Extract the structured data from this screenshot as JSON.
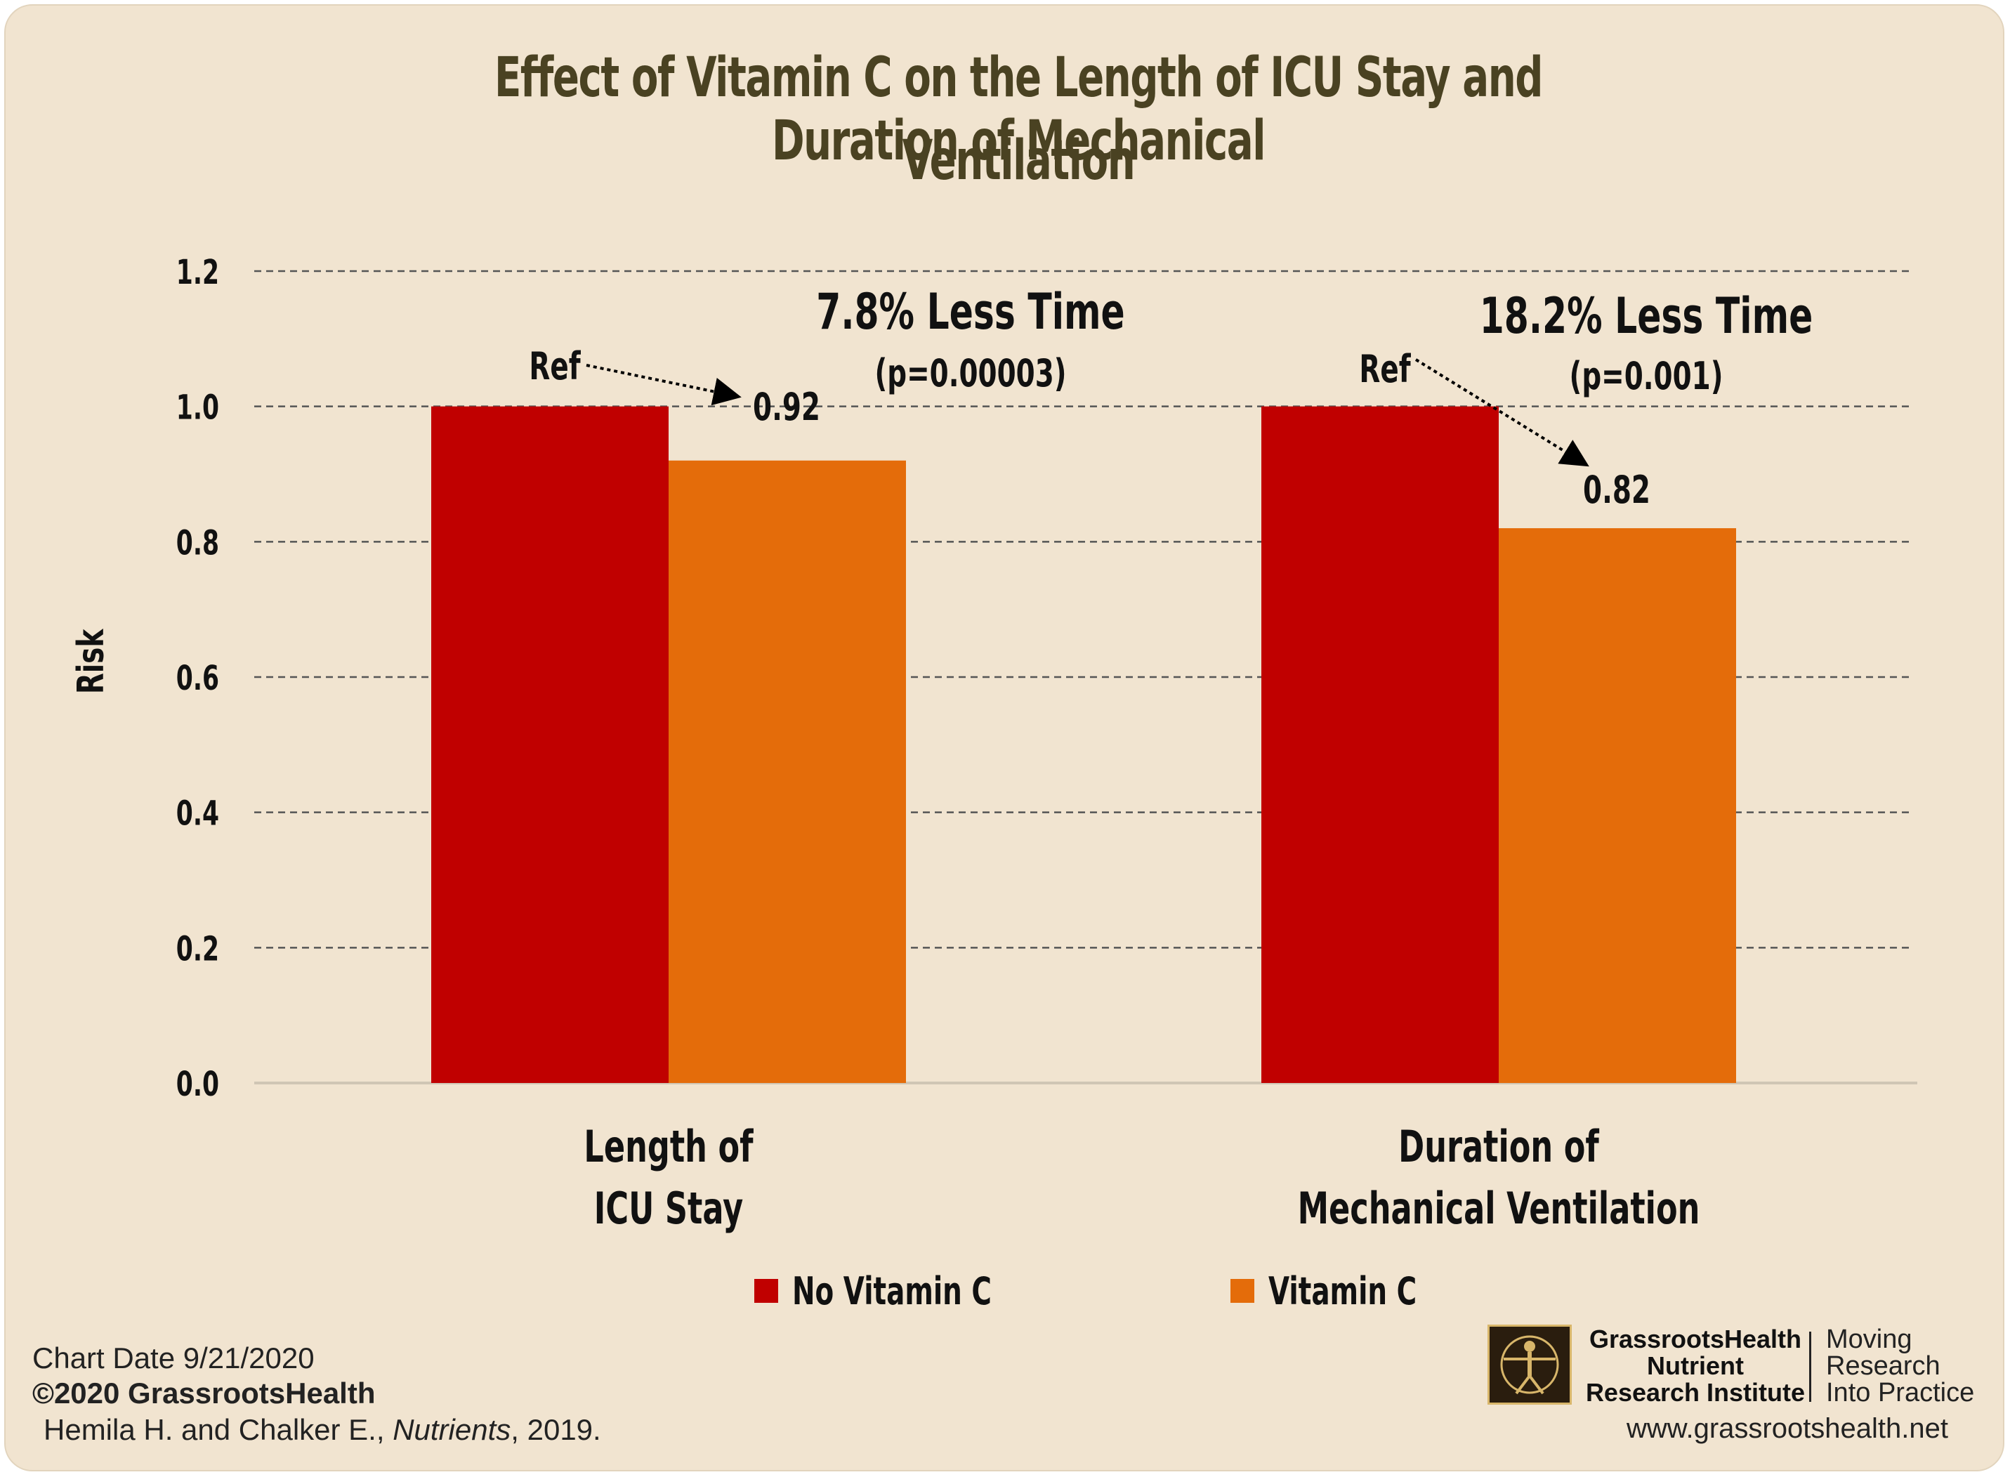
{
  "chart_data": {
    "type": "bar",
    "title_lines": [
      "Effect of Vitamin C on the Length of ICU Stay and Duration of Mechanical",
      "Ventilation"
    ],
    "ylabel": "Risk",
    "ylim": [
      0,
      1.2
    ],
    "yticks": [
      "0.0",
      "0.2",
      "0.4",
      "0.6",
      "0.8",
      "1.0",
      "1.2"
    ],
    "grid": true,
    "legend_position": "bottom",
    "categories": [
      {
        "lines": [
          "Length of",
          "ICU Stay"
        ]
      },
      {
        "lines": [
          "Duration of",
          "Mechanical Ventilation"
        ]
      }
    ],
    "series": [
      {
        "name": "No Vitamin C",
        "color": "#c00000",
        "values": [
          1.0,
          1.0
        ],
        "labels": [
          "Ref",
          "Ref"
        ]
      },
      {
        "name": "Vitamin C",
        "color": "#e46c0a",
        "values": [
          0.92,
          0.82
        ],
        "labels": [
          "0.92",
          "0.82"
        ]
      }
    ],
    "annotations": [
      {
        "headline": "7.8% Less Time",
        "pvalue": "(p=0.00003)"
      },
      {
        "headline": "18.2% Less Time",
        "pvalue": "(p=0.001)"
      }
    ]
  },
  "footer": {
    "chart_date": "Chart Date 9/21/2020",
    "copyright": "©2020 GrassrootsHealth",
    "citation_authors": "Hemila H. and Chalker E., ",
    "citation_journal": "Nutrients",
    "citation_year": ", 2019.",
    "org_lines": [
      "GrassrootsHealth",
      "Nutrient",
      "Research Institute"
    ],
    "tagline_lines": [
      "Moving",
      "Research",
      "Into Practice"
    ],
    "website": "www.grassrootshealth.net"
  },
  "colors": {
    "background": "#f1e4d0",
    "title": "#4a4222"
  }
}
